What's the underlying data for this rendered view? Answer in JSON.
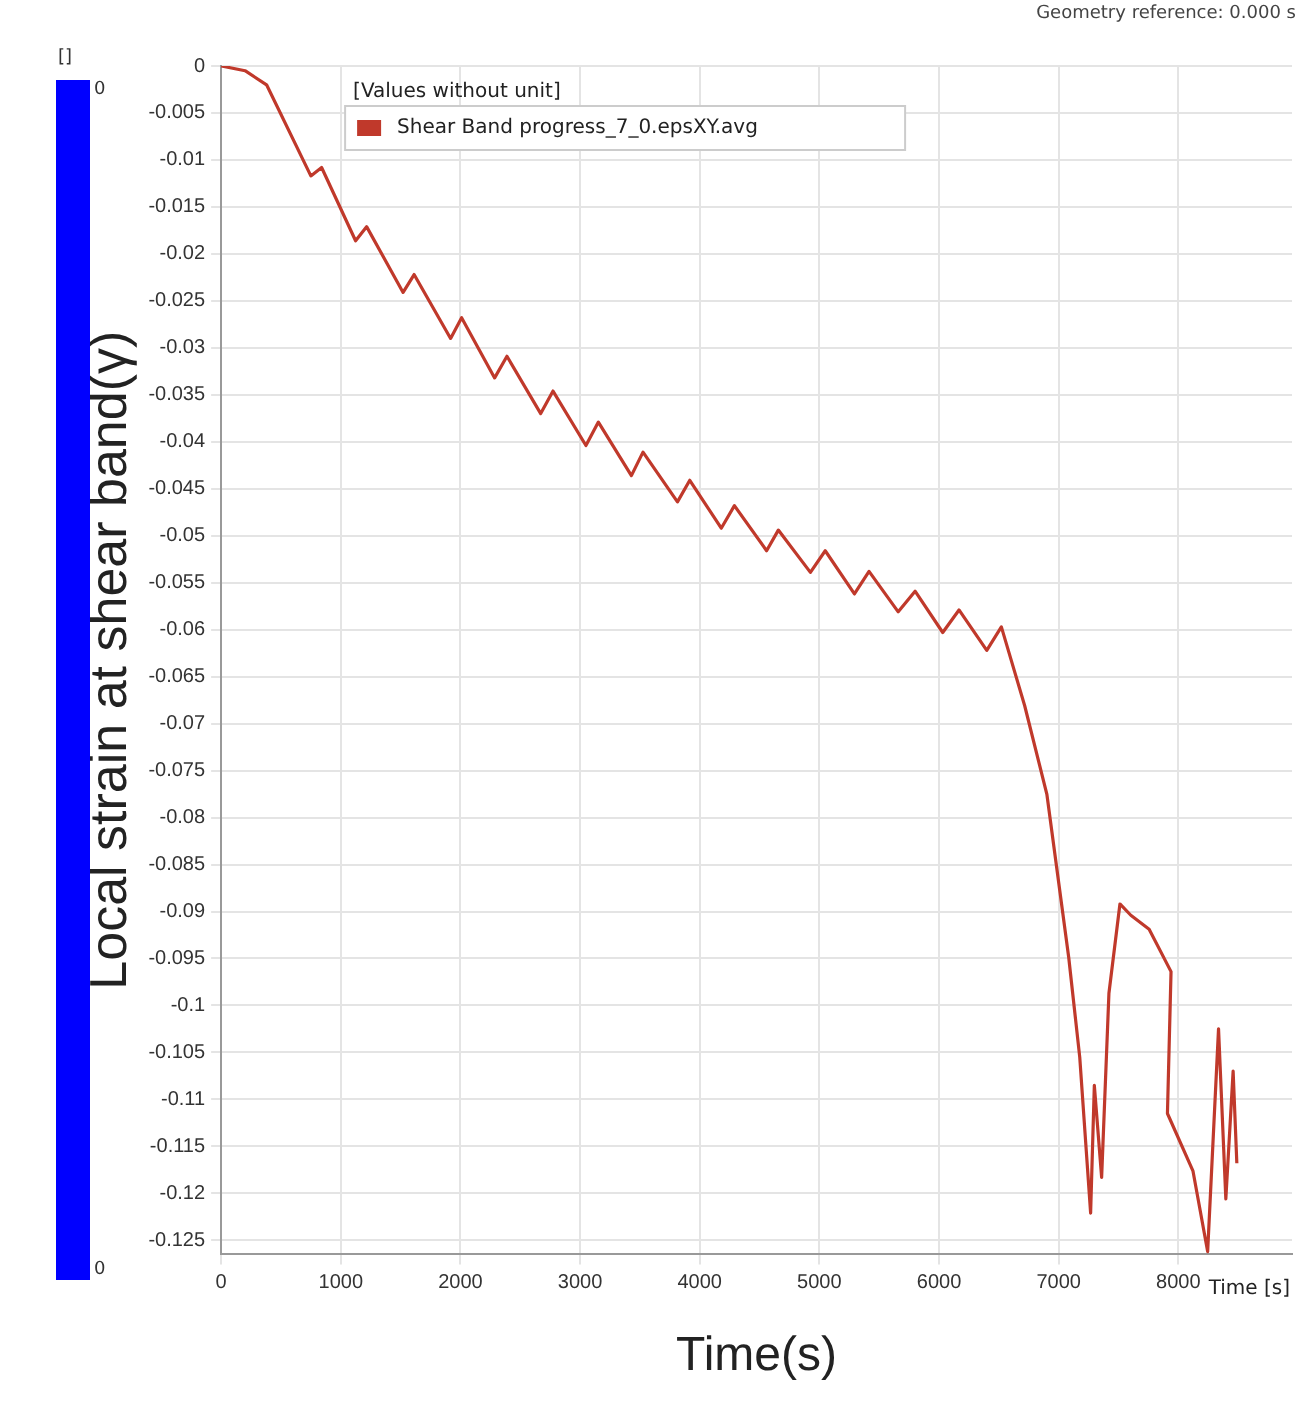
{
  "chart_data": {
    "type": "line",
    "xlabel": "Time(s)",
    "ylabel": "Local strain at shear band(γ)",
    "legend_title": "[Values without unit]",
    "legend": "top left",
    "grid": true,
    "marker": "none",
    "line_style": "solid",
    "xlim": [
      0,
      8950
    ],
    "ylim": [
      -0.1265,
      0
    ],
    "xticks": [
      0,
      1000,
      2000,
      3000,
      4000,
      5000,
      6000,
      7000,
      8000
    ],
    "yticks": [
      0,
      -0.005,
      -0.01,
      -0.015,
      -0.02,
      -0.025,
      -0.03,
      -0.035,
      -0.04,
      -0.045,
      -0.05,
      -0.055,
      -0.06,
      -0.065,
      -0.07,
      -0.075,
      -0.08,
      -0.085,
      -0.09,
      -0.095,
      -0.1,
      -0.105,
      -0.11,
      -0.115,
      -0.12,
      -0.125
    ],
    "annotations": [
      "Geometry reference: 0.000 s",
      "Time [s]",
      "[]",
      "0",
      "0"
    ],
    "series": [
      {
        "name": "Shear Band progress_7_0.epsXY.avg",
        "color": "#c0392b",
        "x": [
          0,
          200,
          380,
          750,
          840,
          1124,
          1216,
          1521,
          1613,
          1918,
          2010,
          2286,
          2389,
          2671,
          2774,
          3049,
          3153,
          3429,
          3526,
          3814,
          3917,
          4180,
          4290,
          4559,
          4657,
          4925,
          5049,
          5293,
          5415,
          5659,
          5800,
          6031,
          6167,
          6399,
          6521,
          6716,
          6901,
          7084,
          7176,
          7267,
          7298,
          7359,
          7420,
          7512,
          7603,
          7756,
          7939,
          7909,
          8122,
          8245,
          8336,
          8397,
          8458,
          8489
        ],
        "values": [
          0,
          -0.0005,
          -0.002,
          -0.0117,
          -0.0108,
          -0.0186,
          -0.0171,
          -0.0241,
          -0.0222,
          -0.029,
          -0.0268,
          -0.0332,
          -0.0309,
          -0.037,
          -0.0346,
          -0.0404,
          -0.0379,
          -0.0436,
          -0.0411,
          -0.0464,
          -0.0441,
          -0.0492,
          -0.0468,
          -0.0516,
          -0.0494,
          -0.0539,
          -0.0516,
          -0.0562,
          -0.0538,
          -0.0581,
          -0.0559,
          -0.0603,
          -0.0579,
          -0.0622,
          -0.0597,
          -0.0681,
          -0.0775,
          -0.0949,
          -0.1055,
          -0.1221,
          -0.1085,
          -0.1183,
          -0.0987,
          -0.0892,
          -0.0904,
          -0.0919,
          -0.0964,
          -0.1115,
          -0.1176,
          -0.1262,
          -0.1025,
          -0.1206,
          -0.107,
          -0.1168
        ]
      }
    ]
  }
}
